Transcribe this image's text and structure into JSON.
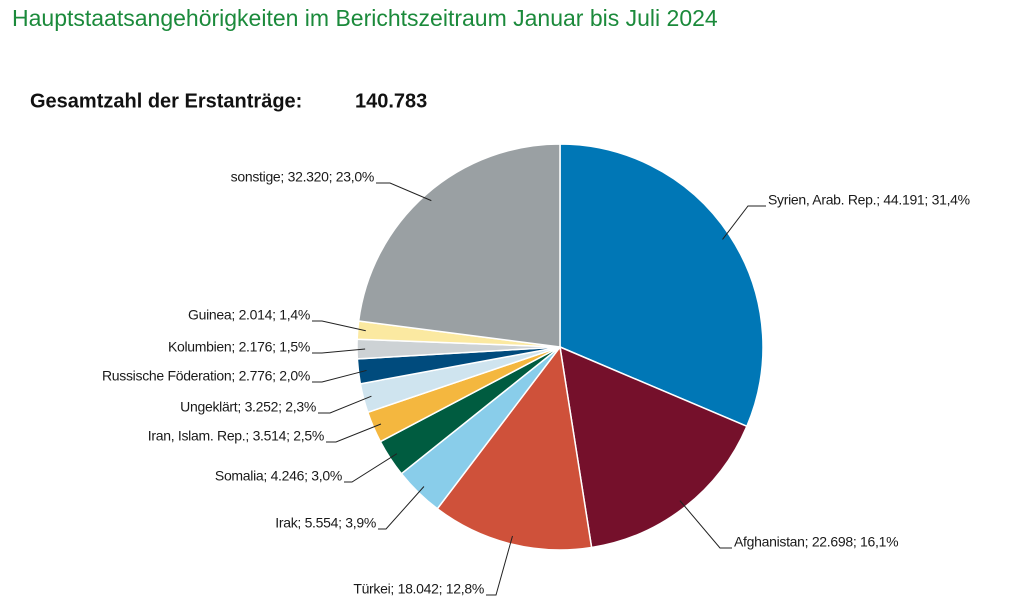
{
  "chart_data": {
    "type": "pie",
    "title": "Hauptstaatsangehörigkeiten im Berichtszeitraum Januar bis Juli 2024",
    "subtitle": "Gesamtzahl der Erstanträge:",
    "total_label": "140.783",
    "values": [
      44191,
      22698,
      18042,
      5554,
      4246,
      3514,
      3252,
      2776,
      2176,
      2014,
      32320
    ],
    "value_labels": [
      "Syrien, Arab. Rep.; 44.191; 31,4%",
      "Afghanistan; 22.698; 16,1%",
      "Türkei; 18.042; 12,8%",
      "Irak; 5.554; 3,9%",
      "Somalia; 4.246; 3,0%",
      "Iran, Islam. Rep.; 3.514; 2,5%",
      "Ungeklärt; 3.252; 2,3%",
      "Russische Föderation; 2.776; 2,0%",
      "Kolumbien; 2.176; 1,5%",
      "Guinea; 2.014; 1,4%",
      "sonstige; 32.320; 23,0%"
    ],
    "colors": [
      "#0077b6",
      "#75102b",
      "#cf513a",
      "#89cdea",
      "#005c40",
      "#f4b73f",
      "#cfe4ef",
      "#004b7d",
      "#cdd2d5",
      "#fbe9a1",
      "#9aa0a3"
    ]
  }
}
